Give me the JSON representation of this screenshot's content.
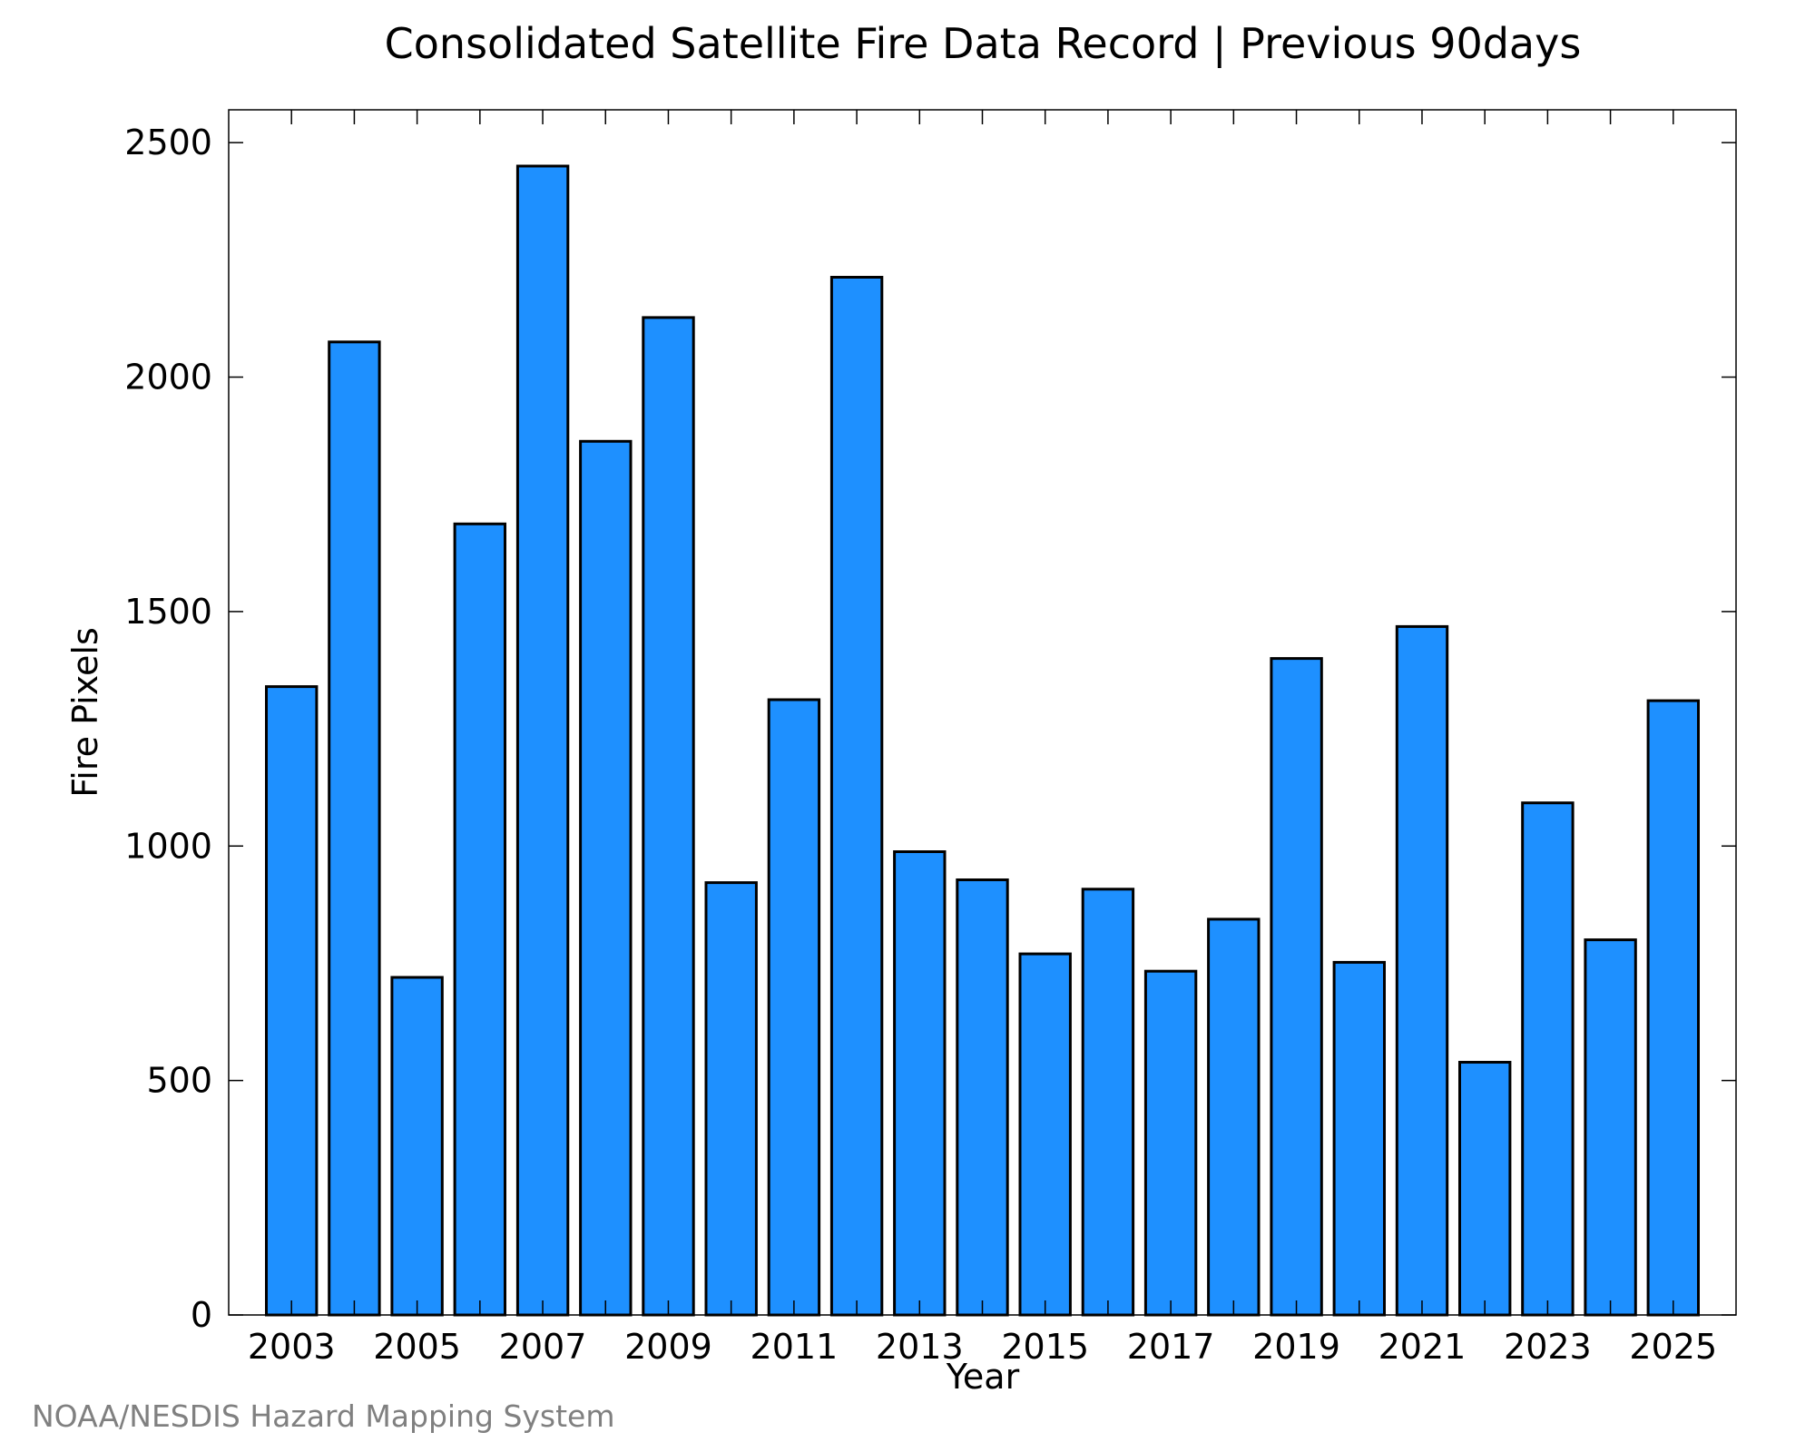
{
  "chart_data": {
    "type": "bar",
    "title": "Consolidated Satellite Fire Data Record | Previous 90days",
    "xlabel": "Year",
    "ylabel": "Fire Pixels",
    "categories": [
      "2003",
      "2004",
      "2005",
      "2006",
      "2007",
      "2008",
      "2009",
      "2010",
      "2011",
      "2012",
      "2013",
      "2014",
      "2015",
      "2016",
      "2017",
      "2018",
      "2019",
      "2020",
      "2021",
      "2022",
      "2023",
      "2024",
      "2025"
    ],
    "values": [
      1340,
      2075,
      720,
      1687,
      2450,
      1863,
      2127,
      922,
      1312,
      2213,
      988,
      928,
      770,
      908,
      733,
      844,
      1400,
      752,
      1468,
      539,
      1092,
      800,
      1310
    ],
    "ylim": [
      0,
      2570
    ],
    "xlim": [
      2002.0,
      2026.0
    ],
    "y_ticks": [
      0,
      500,
      1000,
      1500,
      2000,
      2500
    ],
    "x_tick_labels": [
      "2003",
      "2005",
      "2007",
      "2009",
      "2011",
      "2013",
      "2015",
      "2017",
      "2019",
      "2021",
      "2023",
      "2025"
    ],
    "bar_color": "#1e90ff",
    "edge_color": "#000000",
    "grid": false,
    "legend": "none"
  },
  "credit": "NOAA/NESDIS Hazard Mapping System"
}
